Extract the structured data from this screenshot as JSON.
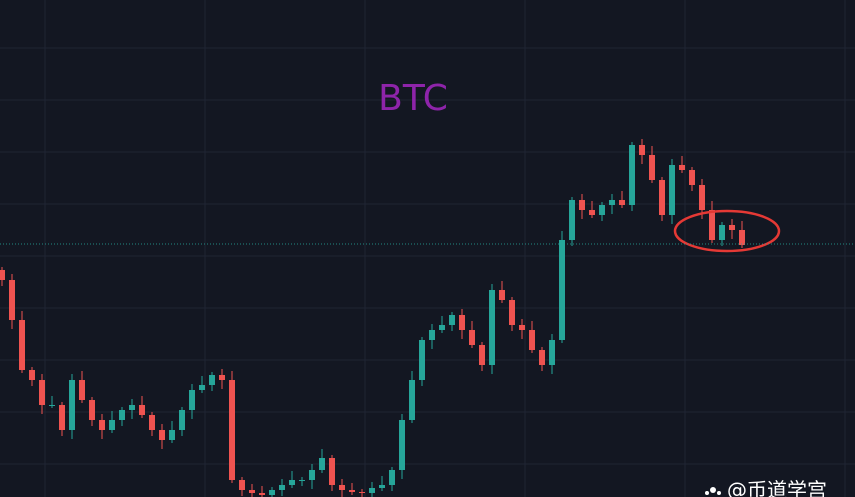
{
  "chart_data": {
    "type": "candlestick",
    "title": "BTC",
    "watermark": "@币道学宫",
    "up_color": "#26a69a",
    "down_color": "#ef5350",
    "title_color": "#8e24aa",
    "ylim": [
      0,
      497
    ],
    "price_line": 253,
    "open": [
      227,
      217,
      177,
      127,
      117,
      92,
      92,
      67,
      117,
      97,
      77,
      67,
      77,
      87,
      92,
      82,
      67,
      57,
      67,
      87,
      107,
      112,
      122,
      117,
      17,
      7,
      4,
      2,
      7,
      12,
      17,
      17,
      27,
      39,
      12,
      7,
      5,
      4,
      9,
      12,
      27,
      77,
      117,
      157,
      167,
      172,
      182,
      167,
      152,
      132,
      207,
      197,
      172,
      167,
      147,
      132,
      157,
      257,
      297,
      287,
      282,
      292,
      297,
      292,
      352,
      342,
      317,
      282,
      332,
      327,
      312,
      287,
      257,
      272,
      267
    ],
    "high": [
      230,
      223,
      186,
      130,
      123,
      101,
      95,
      123,
      126,
      100,
      83,
      86,
      90,
      98,
      101,
      85,
      73,
      76,
      90,
      113,
      121,
      125,
      128,
      126,
      20,
      13,
      11,
      10,
      18,
      26,
      20,
      33,
      48,
      42,
      18,
      14,
      8,
      15,
      21,
      30,
      83,
      126,
      160,
      173,
      181,
      185,
      188,
      176,
      155,
      213,
      216,
      200,
      178,
      176,
      150,
      163,
      266,
      300,
      303,
      296,
      295,
      303,
      306,
      355,
      358,
      351,
      320,
      338,
      341,
      330,
      318,
      296,
      275,
      278,
      276
    ],
    "low": [
      211,
      168,
      124,
      111,
      83,
      89,
      61,
      58,
      94,
      71,
      58,
      64,
      71,
      78,
      79,
      61,
      48,
      54,
      61,
      78,
      104,
      106,
      108,
      14,
      1,
      0,
      0,
      0,
      1,
      9,
      11,
      8,
      24,
      6,
      0,
      2,
      0,
      0,
      6,
      6,
      18,
      74,
      111,
      148,
      164,
      166,
      158,
      149,
      126,
      123,
      194,
      166,
      158,
      144,
      126,
      123,
      154,
      251,
      278,
      279,
      276,
      283,
      289,
      286,
      333,
      314,
      276,
      273,
      324,
      306,
      278,
      254,
      251,
      258,
      249
    ],
    "close": [
      217,
      177,
      127,
      117,
      92,
      92,
      67,
      117,
      97,
      77,
      67,
      77,
      87,
      92,
      82,
      67,
      57,
      67,
      87,
      107,
      112,
      122,
      117,
      17,
      7,
      4,
      2,
      7,
      12,
      17,
      17,
      27,
      39,
      12,
      7,
      5,
      4,
      9,
      12,
      27,
      77,
      117,
      157,
      167,
      172,
      182,
      167,
      152,
      132,
      207,
      197,
      172,
      167,
      147,
      132,
      157,
      257,
      297,
      287,
      282,
      292,
      297,
      292,
      352,
      342,
      317,
      282,
      332,
      327,
      312,
      287,
      257,
      272,
      267,
      252
    ]
  }
}
